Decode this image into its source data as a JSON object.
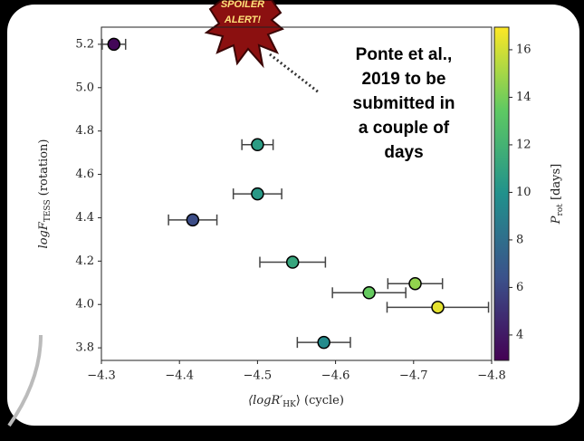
{
  "chart_data": {
    "type": "scatter",
    "x_label": [
      "⟨logR′",
      "HK",
      "⟩ (cycle)"
    ],
    "y_label": [
      "logF",
      "TESS",
      " (rotation)"
    ],
    "colorbar_label": [
      "P",
      "rot",
      " [days]"
    ],
    "annotation": [
      "Ponte et al.,",
      "2019 to be",
      "submitted in",
      "a couple of",
      "days"
    ],
    "badge": [
      "SPOILER",
      "ALERT!"
    ],
    "x": [
      -4.316,
      -4.5,
      -4.5,
      -4.417,
      -4.545,
      -4.643,
      -4.702,
      -4.731,
      -4.585
    ],
    "y": [
      5.2,
      4.737,
      4.51,
      4.39,
      4.195,
      4.054,
      4.096,
      3.987,
      3.825
    ],
    "xerr": [
      0.015,
      0.02,
      0.031,
      0.031,
      0.042,
      0.047,
      0.035,
      0.065,
      0.034
    ],
    "c": [
      3.2,
      10.6,
      10.4,
      6.2,
      11.2,
      13.6,
      14.6,
      16.4,
      9.6
    ],
    "colormap": "viridis",
    "xlim": [
      -4.3,
      -4.8
    ],
    "ylim": [
      3.742,
      5.279
    ],
    "clim": [
      2.93,
      16.95
    ],
    "xticks": [
      {
        "value": -4.3,
        "label": "−4.3"
      },
      {
        "value": -4.4,
        "label": "−4.4"
      },
      {
        "value": -4.5,
        "label": "−4.5"
      },
      {
        "value": -4.6,
        "label": "−4.6"
      },
      {
        "value": -4.7,
        "label": "−4.7"
      },
      {
        "value": -4.8,
        "label": "−4.8"
      }
    ],
    "yticks": [
      {
        "value": 3.8,
        "label": "3.8"
      },
      {
        "value": 4,
        "label": "4.0"
      },
      4.2,
      4.4,
      4.6,
      4.8,
      {
        "value": 5,
        "label": "5.0"
      },
      5.2
    ],
    "cticks": [
      4,
      6,
      8,
      10,
      12,
      14,
      16
    ]
  }
}
